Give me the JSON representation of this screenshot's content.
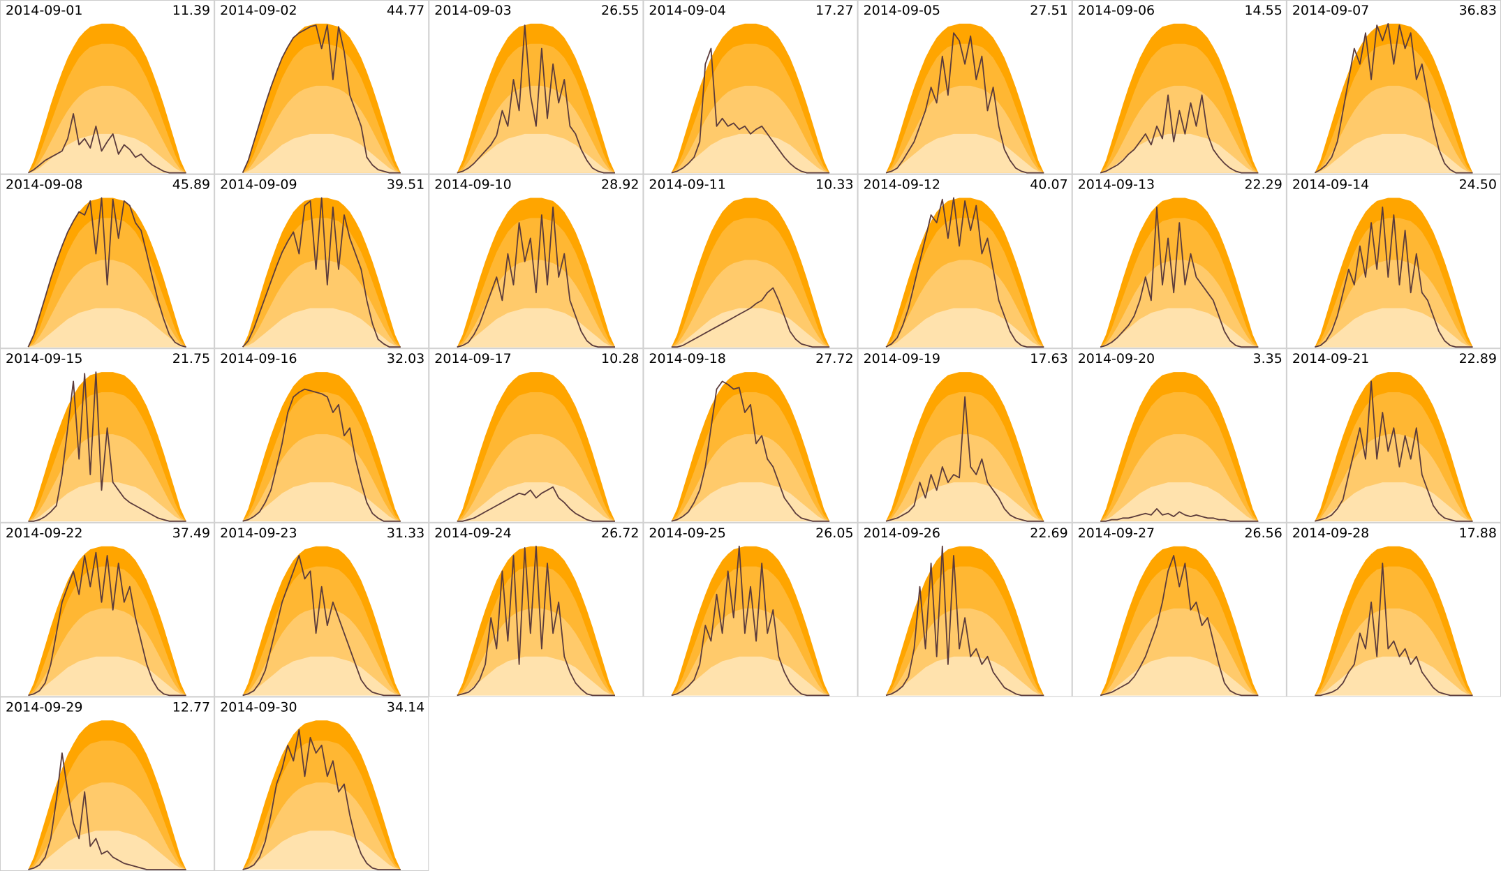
{
  "chart_data": {
    "type": "area",
    "x": [
      6,
      6.5,
      7,
      7.5,
      8,
      8.5,
      9,
      9.5,
      10,
      10.5,
      11,
      11.5,
      12,
      12.5,
      13,
      13.5,
      14,
      14.5,
      15,
      15.5,
      16,
      16.5,
      17,
      17.5,
      18,
      18.5,
      19,
      19.5,
      20
    ],
    "xlim": [
      3.5,
      22.5
    ],
    "ylim": [
      0,
      100
    ],
    "line_color": "#5b3b3b",
    "bands": [
      {
        "color": "#ffa500",
        "values": [
          0,
          8,
          20,
          32,
          44,
          55,
          65,
          74,
          81,
          87,
          91,
          94,
          95,
          96,
          96,
          96,
          95,
          94,
          91,
          87,
          81,
          74,
          65,
          55,
          44,
          32,
          20,
          8,
          0
        ]
      },
      {
        "color": "#ffb733",
        "values": [
          0,
          4,
          12,
          22,
          32,
          42,
          52,
          61,
          68,
          74,
          78,
          81,
          82,
          83,
          83,
          83,
          82,
          81,
          78,
          74,
          68,
          61,
          52,
          42,
          32,
          22,
          12,
          4,
          0
        ]
      },
      {
        "color": "#ffca6b",
        "values": [
          0,
          2,
          7,
          13,
          20,
          27,
          34,
          40,
          45,
          49,
          52,
          54,
          55,
          56,
          56,
          56,
          55,
          54,
          52,
          49,
          45,
          40,
          34,
          27,
          20,
          13,
          7,
          2,
          0
        ]
      },
      {
        "color": "#ffe2ad",
        "values": [
          0,
          1,
          3,
          6,
          9,
          12,
          15,
          18,
          20,
          22,
          23,
          24,
          25,
          25,
          25,
          25,
          25,
          24,
          23,
          22,
          20,
          18,
          15,
          12,
          9,
          6,
          3,
          1,
          0
        ]
      }
    ],
    "panels": [
      {
        "title": "2014-09-01",
        "total": 11.39,
        "values": [
          0,
          2,
          5,
          8,
          10,
          12,
          14,
          22,
          38,
          18,
          22,
          16,
          30,
          14,
          20,
          25,
          12,
          18,
          15,
          10,
          12,
          8,
          5,
          3,
          1,
          0,
          0,
          0,
          0
        ]
      },
      {
        "title": "2014-09-02",
        "total": 44.77,
        "values": [
          0,
          8,
          20,
          32,
          44,
          55,
          65,
          74,
          81,
          87,
          90,
          92,
          94,
          95,
          80,
          95,
          60,
          94,
          78,
          50,
          40,
          30,
          10,
          5,
          2,
          1,
          0,
          0,
          0
        ]
      },
      {
        "title": "2014-09-03",
        "total": 26.55,
        "values": [
          0,
          1,
          3,
          6,
          10,
          14,
          18,
          24,
          40,
          30,
          60,
          40,
          95,
          50,
          30,
          80,
          35,
          70,
          45,
          60,
          30,
          25,
          15,
          8,
          3,
          1,
          0,
          0,
          0
        ]
      },
      {
        "title": "2014-09-04",
        "total": 17.27,
        "values": [
          0,
          1,
          3,
          6,
          10,
          20,
          70,
          80,
          30,
          35,
          30,
          32,
          28,
          30,
          25,
          28,
          30,
          25,
          20,
          15,
          10,
          6,
          3,
          1,
          0,
          0,
          0,
          0,
          0
        ]
      },
      {
        "title": "2014-09-05",
        "total": 27.51,
        "values": [
          0,
          1,
          3,
          8,
          14,
          20,
          30,
          40,
          55,
          45,
          75,
          50,
          90,
          85,
          70,
          88,
          60,
          75,
          40,
          55,
          30,
          15,
          8,
          3,
          1,
          0,
          0,
          0,
          0
        ]
      },
      {
        "title": "2014-09-06",
        "total": 14.55,
        "values": [
          0,
          1,
          3,
          5,
          8,
          12,
          15,
          20,
          25,
          18,
          30,
          22,
          50,
          20,
          40,
          25,
          45,
          30,
          50,
          25,
          15,
          10,
          6,
          3,
          1,
          0,
          0,
          0,
          0
        ]
      },
      {
        "title": "2014-09-07",
        "total": 36.83,
        "values": [
          0,
          2,
          5,
          10,
          20,
          40,
          60,
          80,
          70,
          90,
          60,
          95,
          85,
          96,
          70,
          95,
          80,
          90,
          60,
          70,
          50,
          30,
          15,
          6,
          2,
          0,
          0,
          0,
          0
        ]
      },
      {
        "title": "2014-09-08",
        "total": 45.89,
        "values": [
          0,
          8,
          20,
          32,
          44,
          55,
          65,
          74,
          81,
          87,
          85,
          94,
          60,
          96,
          40,
          95,
          70,
          94,
          91,
          80,
          75,
          60,
          45,
          30,
          18,
          8,
          3,
          1,
          0
        ]
      },
      {
        "title": "2014-09-09",
        "total": 39.51,
        "values": [
          0,
          4,
          12,
          22,
          32,
          42,
          52,
          61,
          68,
          74,
          60,
          91,
          94,
          50,
          96,
          40,
          90,
          50,
          85,
          70,
          60,
          50,
          30,
          15,
          5,
          2,
          0,
          0,
          0
        ]
      },
      {
        "title": "2014-09-10",
        "total": 28.92,
        "values": [
          0,
          1,
          3,
          8,
          15,
          25,
          35,
          45,
          30,
          60,
          40,
          80,
          55,
          70,
          35,
          85,
          40,
          90,
          45,
          60,
          30,
          20,
          10,
          4,
          1,
          0,
          0,
          0,
          0
        ]
      },
      {
        "title": "2014-09-11",
        "total": 10.33,
        "values": [
          0,
          0,
          1,
          3,
          5,
          7,
          9,
          11,
          13,
          15,
          17,
          19,
          21,
          23,
          25,
          28,
          30,
          35,
          38,
          30,
          20,
          10,
          5,
          2,
          1,
          0,
          0,
          0,
          0
        ]
      },
      {
        "title": "2014-09-12",
        "total": 40.07,
        "values": [
          0,
          2,
          6,
          14,
          25,
          40,
          55,
          70,
          85,
          80,
          95,
          70,
          96,
          65,
          94,
          75,
          91,
          60,
          70,
          50,
          30,
          20,
          10,
          4,
          1,
          0,
          0,
          0,
          0
        ]
      },
      {
        "title": "2014-09-13",
        "total": 22.29,
        "values": [
          0,
          1,
          3,
          6,
          10,
          14,
          20,
          30,
          45,
          30,
          90,
          40,
          70,
          35,
          80,
          40,
          60,
          45,
          40,
          35,
          30,
          20,
          10,
          4,
          1,
          0,
          0,
          0,
          0
        ]
      },
      {
        "title": "2014-09-14",
        "total": 24.5,
        "total_label": "24.50",
        "values": [
          0,
          1,
          4,
          10,
          20,
          35,
          50,
          40,
          65,
          45,
          80,
          50,
          90,
          45,
          85,
          40,
          75,
          35,
          60,
          35,
          30,
          20,
          10,
          4,
          1,
          0,
          0,
          0,
          0
        ]
      },
      {
        "title": "2014-09-15",
        "total": 21.75,
        "values": [
          0,
          0,
          1,
          3,
          6,
          10,
          30,
          60,
          90,
          40,
          95,
          30,
          96,
          20,
          60,
          25,
          20,
          15,
          12,
          10,
          8,
          6,
          4,
          2,
          1,
          0,
          0,
          0,
          0
        ]
      },
      {
        "title": "2014-09-16",
        "total": 32.03,
        "values": [
          0,
          1,
          3,
          6,
          12,
          20,
          35,
          50,
          70,
          80,
          83,
          85,
          84,
          83,
          82,
          80,
          70,
          75,
          55,
          60,
          40,
          25,
          12,
          5,
          2,
          0,
          0,
          0,
          0
        ]
      },
      {
        "title": "2014-09-17",
        "total": 10.28,
        "values": [
          0,
          0,
          1,
          2,
          4,
          6,
          8,
          10,
          12,
          14,
          16,
          18,
          17,
          20,
          15,
          18,
          20,
          22,
          15,
          12,
          8,
          5,
          3,
          1,
          0,
          0,
          0,
          0,
          0
        ]
      },
      {
        "title": "2014-09-18",
        "total": 27.72,
        "values": [
          0,
          1,
          3,
          6,
          12,
          20,
          35,
          60,
          85,
          90,
          88,
          85,
          86,
          70,
          75,
          50,
          55,
          40,
          35,
          25,
          15,
          10,
          5,
          2,
          1,
          0,
          0,
          0,
          0
        ]
      },
      {
        "title": "2014-09-19",
        "total": 17.63,
        "values": [
          0,
          1,
          2,
          4,
          6,
          10,
          25,
          15,
          30,
          20,
          35,
          25,
          30,
          28,
          80,
          35,
          30,
          40,
          25,
          20,
          15,
          8,
          4,
          2,
          1,
          0,
          0,
          0,
          0
        ]
      },
      {
        "title": "2014-09-20",
        "total": 3.35,
        "values": [
          0,
          0,
          1,
          1,
          2,
          2,
          3,
          4,
          5,
          4,
          8,
          4,
          5,
          3,
          6,
          4,
          3,
          4,
          3,
          2,
          2,
          1,
          1,
          0,
          0,
          0,
          0,
          0,
          0
        ]
      },
      {
        "title": "2014-09-21",
        "total": 22.89,
        "values": [
          0,
          1,
          2,
          4,
          8,
          14,
          30,
          45,
          60,
          40,
          90,
          40,
          70,
          45,
          60,
          35,
          55,
          40,
          60,
          30,
          20,
          10,
          5,
          2,
          1,
          0,
          0,
          0,
          0
        ]
      },
      {
        "title": "2014-09-22",
        "total": 37.49,
        "values": [
          0,
          1,
          3,
          8,
          20,
          40,
          60,
          70,
          80,
          65,
          90,
          70,
          92,
          60,
          90,
          55,
          85,
          60,
          70,
          50,
          35,
          20,
          10,
          4,
          1,
          0,
          0,
          0,
          0
        ]
      },
      {
        "title": "2014-09-23",
        "total": 31.33,
        "values": [
          0,
          1,
          3,
          8,
          16,
          30,
          45,
          60,
          70,
          80,
          90,
          75,
          80,
          40,
          70,
          45,
          60,
          50,
          40,
          30,
          20,
          10,
          5,
          2,
          1,
          0,
          0,
          0,
          0
        ]
      },
      {
        "title": "2014-09-24",
        "total": 26.72,
        "values": [
          0,
          1,
          2,
          5,
          10,
          20,
          50,
          30,
          80,
          35,
          90,
          20,
          95,
          40,
          96,
          30,
          85,
          40,
          60,
          25,
          15,
          8,
          4,
          1,
          0,
          0,
          0,
          0,
          0
        ]
      },
      {
        "title": "2014-09-25",
        "total": 26.05,
        "values": [
          0,
          1,
          3,
          6,
          10,
          20,
          45,
          35,
          65,
          40,
          80,
          50,
          96,
          40,
          70,
          35,
          85,
          40,
          55,
          25,
          15,
          8,
          4,
          1,
          0,
          0,
          0,
          0,
          0
        ]
      },
      {
        "title": "2014-09-26",
        "total": 22.69,
        "values": [
          0,
          1,
          3,
          6,
          12,
          30,
          70,
          30,
          85,
          25,
          96,
          20,
          90,
          30,
          50,
          25,
          30,
          20,
          25,
          15,
          10,
          5,
          3,
          1,
          0,
          0,
          0,
          0,
          0
        ]
      },
      {
        "title": "2014-09-27",
        "total": 26.56,
        "values": [
          0,
          1,
          2,
          4,
          6,
          8,
          12,
          18,
          25,
          35,
          45,
          60,
          80,
          90,
          70,
          85,
          55,
          60,
          45,
          50,
          35,
          20,
          8,
          3,
          1,
          0,
          0,
          0,
          0
        ]
      },
      {
        "title": "2014-09-28",
        "total": 17.88,
        "values": [
          0,
          0,
          1,
          2,
          4,
          8,
          15,
          20,
          40,
          30,
          60,
          25,
          85,
          30,
          35,
          25,
          30,
          20,
          25,
          15,
          10,
          5,
          2,
          1,
          0,
          0,
          0,
          0,
          0
        ]
      },
      {
        "title": "2014-09-29",
        "total": 12.77,
        "values": [
          0,
          1,
          3,
          8,
          20,
          45,
          75,
          50,
          30,
          20,
          50,
          15,
          20,
          10,
          12,
          8,
          6,
          4,
          3,
          2,
          1,
          0,
          0,
          0,
          0,
          0,
          0,
          0,
          0
        ]
      },
      {
        "title": "2014-09-30",
        "total": 34.14,
        "values": [
          0,
          1,
          3,
          8,
          18,
          35,
          55,
          65,
          80,
          70,
          90,
          60,
          85,
          75,
          80,
          60,
          70,
          50,
          55,
          35,
          20,
          10,
          4,
          1,
          0,
          0,
          0,
          0,
          0
        ]
      }
    ]
  }
}
